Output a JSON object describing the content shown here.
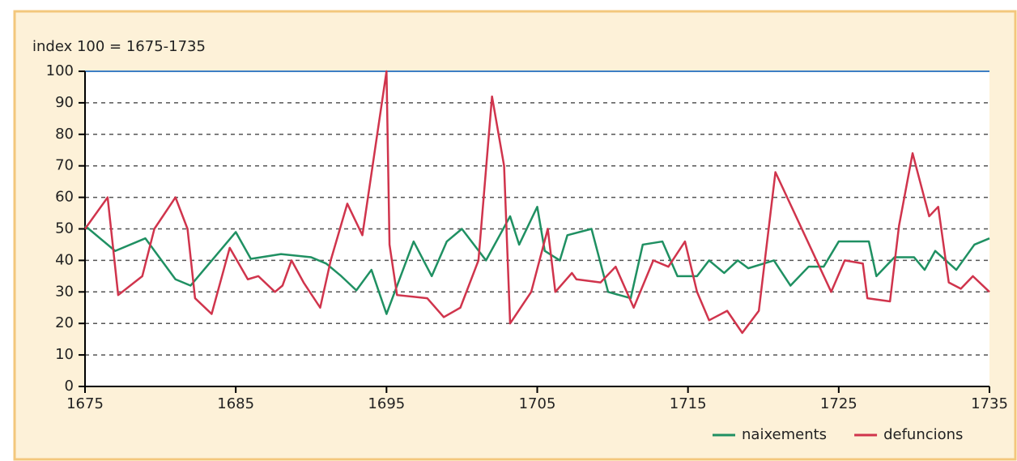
{
  "chart_data": {
    "type": "line",
    "y_label": "index 100 = 1675-1735",
    "xlim": [
      1675,
      1735
    ],
    "xticks": [
      1675,
      1685,
      1695,
      1705,
      1715,
      1725,
      1735
    ],
    "ylim": [
      0,
      100
    ],
    "yticks": [
      0,
      10,
      20,
      30,
      40,
      50,
      60,
      70,
      80,
      90,
      100
    ],
    "grid": true,
    "legend": "lower right",
    "series": [
      {
        "name": "naixements",
        "color": "#1f9062",
        "x": [
          1675,
          1677,
          1679,
          1681,
          1682,
          1685,
          1686,
          1688,
          1690,
          1691,
          1692,
          1693,
          1694,
          1695,
          1696.8,
          1698,
          1699,
          1700,
          1701.6,
          1703.2,
          1703.8,
          1705,
          1705.5,
          1706.5,
          1707,
          1708.6,
          1709.7,
          1711.2,
          1712,
          1713.3,
          1714.3,
          1715.6,
          1716.4,
          1717.4,
          1718.3,
          1719,
          1720.7,
          1721.8,
          1723,
          1724,
          1725,
          1727,
          1727.5,
          1728.7,
          1730,
          1730.7,
          1731.4,
          1732.8,
          1734,
          1735
        ],
        "values": [
          51,
          43,
          47,
          34,
          32,
          49,
          40.5,
          42,
          41,
          39,
          35,
          30.5,
          37,
          23,
          46,
          35,
          46,
          50,
          40,
          54,
          45,
          57,
          43,
          40,
          48,
          50,
          30,
          28,
          45,
          46,
          35,
          35,
          40,
          36,
          40,
          37.5,
          40,
          32,
          38,
          38,
          46,
          46,
          35,
          41,
          41,
          37,
          43,
          37,
          45,
          47
        ]
      },
      {
        "name": "defuncions",
        "color": "#d0344c",
        "x": [
          1675,
          1676.5,
          1677.2,
          1678.8,
          1679.6,
          1681,
          1681.8,
          1682.3,
          1683.4,
          1684.6,
          1685.8,
          1686.5,
          1687.6,
          1688.1,
          1688.7,
          1689.5,
          1690.6,
          1691.3,
          1692.4,
          1693.4,
          1695,
          1695.2,
          1695.7,
          1697.7,
          1698.8,
          1699.9,
          1701.1,
          1702,
          1702.8,
          1703.2,
          1704.6,
          1705.7,
          1706.2,
          1707.3,
          1707.6,
          1709.2,
          1710.2,
          1711.4,
          1712.7,
          1713.7,
          1714.8,
          1715.6,
          1716.4,
          1717.6,
          1718.6,
          1719.7,
          1720.8,
          1724.5,
          1725.4,
          1726.6,
          1726.9,
          1728.4,
          1729,
          1729.9,
          1731,
          1731.6,
          1732.3,
          1733.1,
          1733.9,
          1735
        ],
        "values": [
          50,
          60,
          29,
          35,
          50,
          60,
          50,
          28,
          23,
          44,
          34,
          35,
          30,
          32,
          40,
          33,
          25,
          40,
          58,
          48,
          100,
          45,
          29,
          28,
          22,
          25,
          40,
          92,
          70,
          20,
          30,
          50,
          30,
          36,
          34,
          33,
          38,
          25,
          40,
          38,
          46,
          30,
          21,
          24,
          17,
          24,
          68,
          30,
          40,
          39,
          28,
          27,
          51,
          74,
          54,
          57,
          33,
          31,
          35,
          30
        ]
      }
    ]
  }
}
